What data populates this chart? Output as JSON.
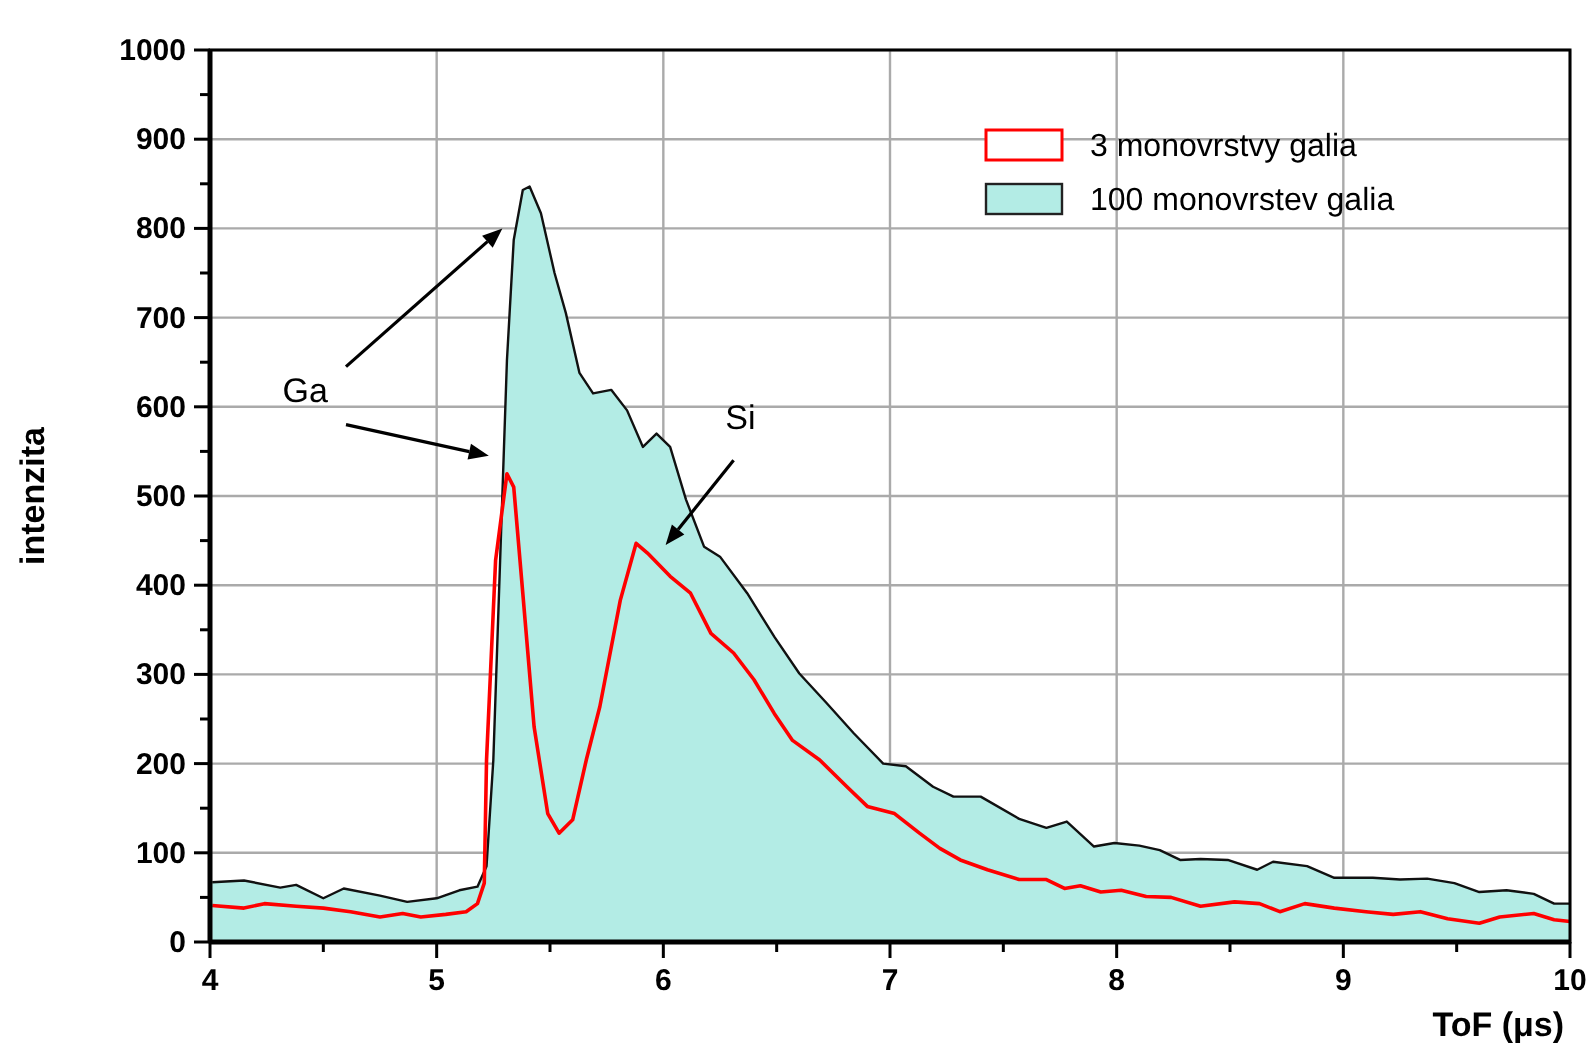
{
  "chart_data": {
    "type": "line",
    "xlabel": "ToF (μs)",
    "ylabel": "intenzita",
    "xlim": [
      4,
      10
    ],
    "ylim": [
      0,
      1000
    ],
    "xticks": [
      4,
      {
        "value": 4.5,
        "label": null
      },
      5,
      {
        "value": 5.5,
        "label": null
      },
      6,
      {
        "value": 6.5,
        "label": null
      },
      7,
      {
        "value": 7.5,
        "label": null
      },
      8,
      {
        "value": 8.5,
        "label": null
      },
      9,
      {
        "value": 9.5,
        "label": null
      },
      10
    ],
    "yticks": [
      0,
      {
        "value": 50,
        "label": null
      },
      100,
      {
        "value": 150,
        "label": null
      },
      200,
      {
        "value": 250,
        "label": null
      },
      300,
      {
        "value": 350,
        "label": null
      },
      400,
      {
        "value": 450,
        "label": null
      },
      500,
      {
        "value": 550,
        "label": null
      },
      600,
      {
        "value": 650,
        "label": null
      },
      700,
      {
        "value": 750,
        "label": null
      },
      800,
      {
        "value": 850,
        "label": null
      },
      900,
      {
        "value": 950,
        "label": null
      },
      1000
    ],
    "grid": true,
    "legend": "top right",
    "series": [
      {
        "name": "3 monovrstvy galia",
        "type": "line",
        "color": "#ff0000",
        "x": [
          4.01,
          4.15,
          4.24,
          4.38,
          4.5,
          4.62,
          4.75,
          4.85,
          4.93,
          5.04,
          5.13,
          5.18,
          5.21,
          5.22,
          5.26,
          5.31,
          5.34,
          5.38,
          5.43,
          5.49,
          5.54,
          5.6,
          5.66,
          5.72,
          5.81,
          5.88,
          5.93,
          6.03,
          6.12,
          6.21,
          6.31,
          6.4,
          6.49,
          6.57,
          6.69,
          6.81,
          6.9,
          7.02,
          7.13,
          7.22,
          7.31,
          7.43,
          7.57,
          7.69,
          7.77,
          7.84,
          7.93,
          8.02,
          8.13,
          8.24,
          8.37,
          8.52,
          8.63,
          8.72,
          8.83,
          8.96,
          9.1,
          9.22,
          9.34,
          9.46,
          9.6,
          9.69,
          9.84,
          9.93,
          10
        ],
        "values": [
          41,
          38,
          43,
          40,
          38,
          34,
          28,
          32,
          28,
          31,
          34,
          43,
          66,
          204,
          428,
          525,
          510,
          391,
          241,
          144,
          122,
          137,
          204,
          264,
          383,
          447,
          436,
          410,
          391,
          346,
          324,
          294,
          256,
          226,
          204,
          174,
          152,
          144,
          122,
          105,
          92,
          81,
          70,
          70,
          60,
          63,
          56,
          58,
          51,
          50,
          40,
          45,
          43,
          34,
          43,
          38,
          34,
          31,
          34,
          26,
          21,
          28,
          32,
          25,
          23
        ]
      },
      {
        "name": "100 monovrstev galia",
        "type": "area",
        "color": "#b3ece5",
        "x": [
          4.01,
          4.15,
          4.31,
          4.38,
          4.5,
          4.59,
          4.75,
          4.87,
          5.0,
          5.1,
          5.18,
          5.22,
          5.25,
          5.28,
          5.31,
          5.34,
          5.38,
          5.41,
          5.46,
          5.52,
          5.57,
          5.63,
          5.69,
          5.77,
          5.84,
          5.91,
          5.97,
          6.03,
          6.1,
          6.18,
          6.25,
          6.37,
          6.49,
          6.6,
          6.72,
          6.84,
          6.97,
          7.07,
          7.19,
          7.28,
          7.4,
          7.57,
          7.69,
          7.78,
          7.9,
          7.99,
          8.1,
          8.19,
          8.28,
          8.37,
          8.49,
          8.62,
          8.69,
          8.84,
          8.96,
          9.13,
          9.25,
          9.37,
          9.49,
          9.6,
          9.72,
          9.84,
          9.93,
          10
        ],
        "values": [
          67,
          69,
          61,
          64,
          49,
          60,
          52,
          45,
          49,
          58,
          62,
          85,
          204,
          428,
          652,
          787,
          843,
          847,
          817,
          750,
          705,
          638,
          615,
          619,
          596,
          555,
          570,
          555,
          496,
          443,
          432,
          391,
          342,
          301,
          268,
          234,
          200,
          197,
          174,
          163,
          163,
          138,
          128,
          135,
          107,
          111,
          108,
          103,
          92,
          93,
          92,
          81,
          90,
          85,
          72,
          72,
          70,
          71,
          66,
          56,
          58,
          54,
          43,
          43
        ]
      }
    ],
    "annotations": [
      "Ga",
      "Si"
    ]
  }
}
